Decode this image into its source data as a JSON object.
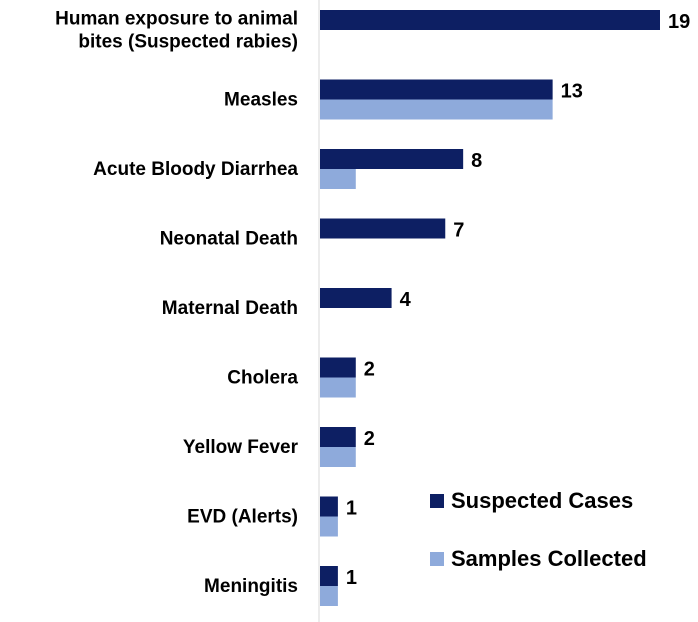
{
  "chart_data": {
    "type": "bar",
    "orientation": "horizontal",
    "categories": [
      [
        "Human exposure to animal",
        "bites (Suspected rabies)"
      ],
      [
        "Measles"
      ],
      [
        "Acute Bloody Diarrhea"
      ],
      [
        "Neonatal Death"
      ],
      [
        "Maternal Death"
      ],
      [
        "Cholera"
      ],
      [
        "Yellow Fever"
      ],
      [
        "EVD (Alerts)"
      ],
      [
        "Meningitis"
      ]
    ],
    "series": [
      {
        "name": "Suspected Cases",
        "color": "#0d1f63",
        "values": [
          19,
          13,
          8,
          7,
          4,
          2,
          2,
          1,
          1
        ]
      },
      {
        "name": "Samples Collected",
        "color": "#8eaadb",
        "values": [
          0,
          13,
          2,
          0,
          0,
          2,
          2,
          1,
          1
        ]
      }
    ],
    "data_labels": [
      "19",
      "13",
      "8",
      "7",
      "4",
      "2",
      "2",
      "1",
      "1"
    ],
    "xlim": [
      0,
      19
    ],
    "legend_position": "bottom-right",
    "grid": false
  }
}
